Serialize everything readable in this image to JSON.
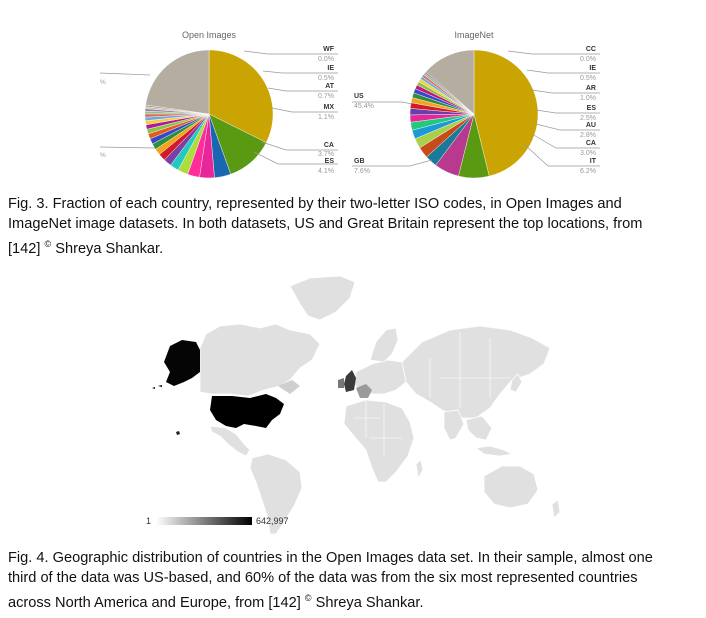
{
  "fig3": {
    "pies": [
      {
        "title": "Open Images",
        "left_labels": [
          {
            "code": "",
            "value": "%"
          },
          {
            "code": "",
            "value": "%"
          }
        ],
        "right_labels": [
          {
            "code": "WF",
            "value": "0.0%"
          },
          {
            "code": "IE",
            "value": "0.5%"
          },
          {
            "code": "AT",
            "value": "0.7%"
          },
          {
            "code": "MX",
            "value": "1.1%"
          },
          {
            "code": "CA",
            "value": "3.7%"
          },
          {
            "code": "ES",
            "value": "4.1%"
          }
        ]
      },
      {
        "title": "ImageNet",
        "left_labels": [
          {
            "code": "US",
            "value": "45.4%"
          },
          {
            "code": "GB",
            "value": "7.6%"
          }
        ],
        "right_labels": [
          {
            "code": "CC",
            "value": "0.0%"
          },
          {
            "code": "IE",
            "value": "0.5%"
          },
          {
            "code": "AR",
            "value": "1.0%"
          },
          {
            "code": "ES",
            "value": "2.5%"
          },
          {
            "code": "AU",
            "value": "2.8%"
          },
          {
            "code": "CA",
            "value": "3.0%"
          },
          {
            "code": "IT",
            "value": "6.2%"
          }
        ]
      }
    ],
    "caption_lines": [
      "Fig. 3.  Fraction of each country, represented by their two-letter ISO codes, in Open Images and",
      "ImageNet image datasets. In both datasets, US and Great Britain represent the top locations, from",
      "[142]",
      "Shreya Shankar."
    ]
  },
  "fig4": {
    "legend_min": "1",
    "legend_max": "642,997",
    "caption_lines": [
      "Fig. 4.  Geographic distribution of countries in the Open Images data set. In their sample, almost one",
      "third of the data was US-based, and 60% of the data was from the six most represented countries",
      "across North America and Europe, from [142]",
      "Shreya Shankar."
    ]
  },
  "copyright_symbol": "©",
  "colors": {
    "pie_us": "#c9a402",
    "pie_green": "#5a9a12",
    "map_land": "#dcdcdc",
    "map_high": "#000000"
  },
  "chart_data": [
    {
      "type": "pie",
      "title": "Open Images",
      "slices": [
        {
          "label": "",
          "value": 32.0
        },
        {
          "label": "",
          "value": 12.0
        },
        {
          "label": "ES",
          "value": 4.1
        },
        {
          "label": "CA",
          "value": 3.7
        },
        {
          "label": "",
          "value": 3.0
        },
        {
          "label": "",
          "value": 2.6
        },
        {
          "label": "",
          "value": 2.2
        },
        {
          "label": "",
          "value": 2.0
        },
        {
          "label": "",
          "value": 1.8
        },
        {
          "label": "",
          "value": 1.6
        },
        {
          "label": "",
          "value": 1.5
        },
        {
          "label": "",
          "value": 1.4
        },
        {
          "label": "",
          "value": 1.3
        },
        {
          "label": "",
          "value": 1.2
        },
        {
          "label": "MX",
          "value": 1.1
        },
        {
          "label": "",
          "value": 1.0
        },
        {
          "label": "",
          "value": 0.9
        },
        {
          "label": "",
          "value": 0.8
        },
        {
          "label": "AT",
          "value": 0.7
        },
        {
          "label": "",
          "value": 0.6
        },
        {
          "label": "IE",
          "value": 0.5
        },
        {
          "label": "",
          "value": 0.4
        },
        {
          "label": "",
          "value": 22.5
        },
        {
          "label": "WF",
          "value": 0.0
        }
      ]
    },
    {
      "type": "pie",
      "title": "ImageNet",
      "slices": [
        {
          "label": "US",
          "value": 45.4
        },
        {
          "label": "GB",
          "value": 7.6
        },
        {
          "label": "IT",
          "value": 6.2
        },
        {
          "label": "CA",
          "value": 3.0
        },
        {
          "label": "AU",
          "value": 2.8
        },
        {
          "label": "ES",
          "value": 2.5
        },
        {
          "label": "",
          "value": 2.2
        },
        {
          "label": "",
          "value": 2.0
        },
        {
          "label": "",
          "value": 1.8
        },
        {
          "label": "",
          "value": 1.6
        },
        {
          "label": "",
          "value": 1.4
        },
        {
          "label": "",
          "value": 1.3
        },
        {
          "label": "",
          "value": 1.2
        },
        {
          "label": "",
          "value": 1.1
        },
        {
          "label": "AR",
          "value": 1.0
        },
        {
          "label": "",
          "value": 0.9
        },
        {
          "label": "",
          "value": 0.8
        },
        {
          "label": "",
          "value": 0.7
        },
        {
          "label": "",
          "value": 0.6
        },
        {
          "label": "IE",
          "value": 0.5
        },
        {
          "label": "",
          "value": 0.4
        },
        {
          "label": "",
          "value": 13.3
        },
        {
          "label": "CC",
          "value": 0.0
        }
      ]
    }
  ]
}
